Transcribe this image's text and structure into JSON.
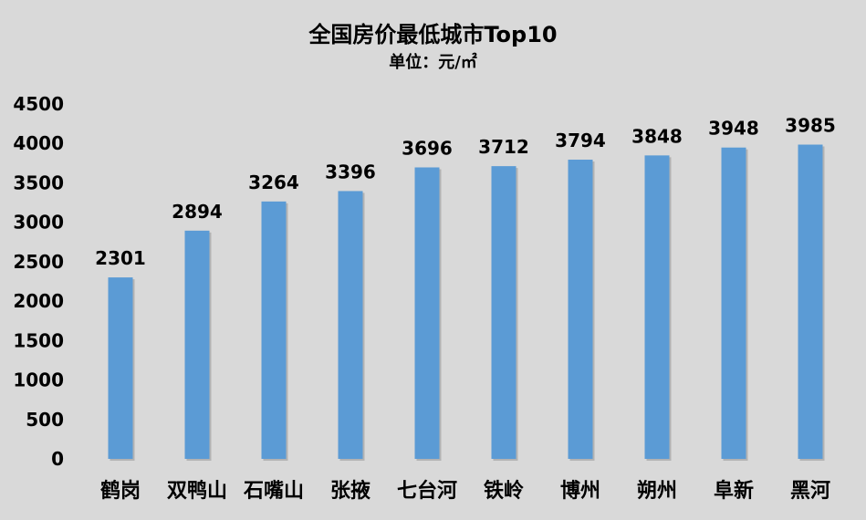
{
  "chart_data": {
    "type": "bar",
    "title": "全国房价最低城市Top10",
    "subtitle": "单位：元/㎡",
    "xlabel": "",
    "ylabel": "",
    "categories": [
      "鹤岗",
      "双鸭山",
      "石嘴山",
      "张掖",
      "七台河",
      "铁岭",
      "博州",
      "朔州",
      "阜新",
      "黑河"
    ],
    "values": [
      2301,
      2894,
      3264,
      3396,
      3696,
      3712,
      3794,
      3848,
      3948,
      3985
    ],
    "ylim": [
      0,
      4500
    ],
    "yticks": [
      0,
      500,
      1000,
      1500,
      2000,
      2500,
      3000,
      3500,
      4000,
      4500
    ],
    "grid": false,
    "legend": "none",
    "colors": {
      "bar": "#5b9bd5",
      "background": "#d9d9d9",
      "text": "#000000"
    }
  }
}
